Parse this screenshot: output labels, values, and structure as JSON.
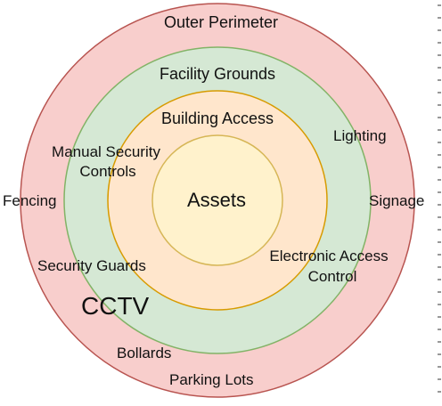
{
  "colors": {
    "outer_fill": "#f8cecc",
    "outer_stroke": "#b85450",
    "middle_fill": "#d5e8d4",
    "middle_stroke": "#82b366",
    "inner_fill": "#ffe6cc",
    "inner_stroke": "#d79b00",
    "core_fill": "#fff2cc",
    "core_stroke": "#d6b656"
  },
  "rings": {
    "outer": {
      "title": "Outer Perimeter"
    },
    "facility": {
      "title": "Facility Grounds"
    },
    "building": {
      "title": "Building Access"
    },
    "core": {
      "title": "Assets"
    }
  },
  "labels": {
    "lighting": "Lighting",
    "manual_1": "Manual Security",
    "manual_2": "Controls",
    "fencing": "Fencing",
    "signage": "Signage",
    "electronic_1": "Electronic Access",
    "electronic_2": "Control",
    "guards": "Security Guards",
    "cctv": "CCTV",
    "bollards": "Bollards",
    "parking": "Parking Lots"
  }
}
